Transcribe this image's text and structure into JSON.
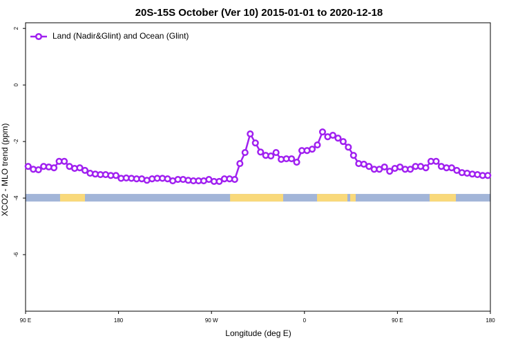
{
  "chart_data": {
    "type": "line",
    "title": "20S-15S October (Ver 10)   2015-01-01 to 2020-12-18",
    "x_label": "Longitude (deg E)",
    "y_label": "XCO2 - MLO trend (ppm)",
    "xlim": [
      90,
      540
    ],
    "ylim": [
      -8,
      2.2
    ],
    "xticks": [
      {
        "value": 90,
        "label": "90 E"
      },
      180,
      {
        "value": 270,
        "label": "90 W"
      },
      {
        "value": 360,
        "label": "0"
      },
      {
        "value": 450,
        "label": "90 E"
      },
      {
        "value": 540,
        "label": "180"
      }
    ],
    "yticks": [
      -6,
      -4,
      -2,
      0,
      2
    ],
    "legend": "top-left",
    "x": [
      92.5,
      97.5,
      102.5,
      107.5,
      112.5,
      117.5,
      122.5,
      127.5,
      132.5,
      137.5,
      142.5,
      147.5,
      152.5,
      157.5,
      162.5,
      167.5,
      172.5,
      177.5,
      182.5,
      187.5,
      192.5,
      197.5,
      202.5,
      207.5,
      212.5,
      217.5,
      222.5,
      227.5,
      232.5,
      237.5,
      242.5,
      247.5,
      252.5,
      257.5,
      262.5,
      267.5,
      272.5,
      277.5,
      282.5,
      287.5,
      292.5,
      297.5,
      302.5,
      307.5,
      312.5,
      317.5,
      322.5,
      327.5,
      332.5,
      337.5,
      342.5,
      347.5,
      352.5,
      357.5,
      362.5,
      367.5,
      372.5,
      377.5,
      382.5,
      387.5,
      392.5,
      397.5,
      402.5,
      407.5,
      412.5,
      417.5,
      422.5,
      427.5,
      432.5,
      437.5,
      442.5,
      447.5,
      452.5,
      457.5,
      462.5,
      467.5,
      472.5,
      477.5,
      482.5,
      487.5,
      492.5,
      497.5,
      502.5,
      507.5,
      512.5,
      517.5,
      522.5,
      527.5,
      532.5,
      537.5
    ],
    "series": [
      {
        "name": "Land (Nadir&Glint) and Ocean (Glint)",
        "color": "#a020f0",
        "values": [
          -2.88,
          -2.98,
          -3.0,
          -2.88,
          -2.9,
          -2.93,
          -2.7,
          -2.7,
          -2.88,
          -2.95,
          -2.93,
          -3.02,
          -3.12,
          -3.15,
          -3.17,
          -3.17,
          -3.2,
          -3.2,
          -3.3,
          -3.29,
          -3.3,
          -3.32,
          -3.32,
          -3.37,
          -3.32,
          -3.3,
          -3.3,
          -3.32,
          -3.39,
          -3.34,
          -3.34,
          -3.37,
          -3.39,
          -3.39,
          -3.39,
          -3.34,
          -3.41,
          -3.41,
          -3.32,
          -3.32,
          -3.34,
          -2.78,
          -2.39,
          -1.73,
          -2.05,
          -2.37,
          -2.49,
          -2.51,
          -2.39,
          -2.63,
          -2.61,
          -2.61,
          -2.73,
          -2.32,
          -2.32,
          -2.27,
          -2.12,
          -1.66,
          -1.83,
          -1.78,
          -1.88,
          -2.0,
          -2.2,
          -2.49,
          -2.78,
          -2.8,
          -2.88,
          -2.98,
          -2.98,
          -2.9,
          -3.05,
          -2.95,
          -2.9,
          -2.98,
          -2.98,
          -2.88,
          -2.88,
          -2.93,
          -2.7,
          -2.7,
          -2.88,
          -2.93,
          -2.93,
          -3.02,
          -3.1,
          -3.12,
          -3.15,
          -3.17,
          -3.2,
          -3.2
        ]
      }
    ],
    "surface_strip": {
      "y": -4,
      "ocean_color": "#a2b5d8",
      "land_color": "#f9d97a",
      "land": [
        [
          123.4,
          147.5
        ],
        [
          288,
          339.4
        ],
        [
          372.2,
          401.6
        ],
        [
          404.3,
          409.6
        ],
        [
          481.2,
          506.6
        ]
      ]
    }
  }
}
